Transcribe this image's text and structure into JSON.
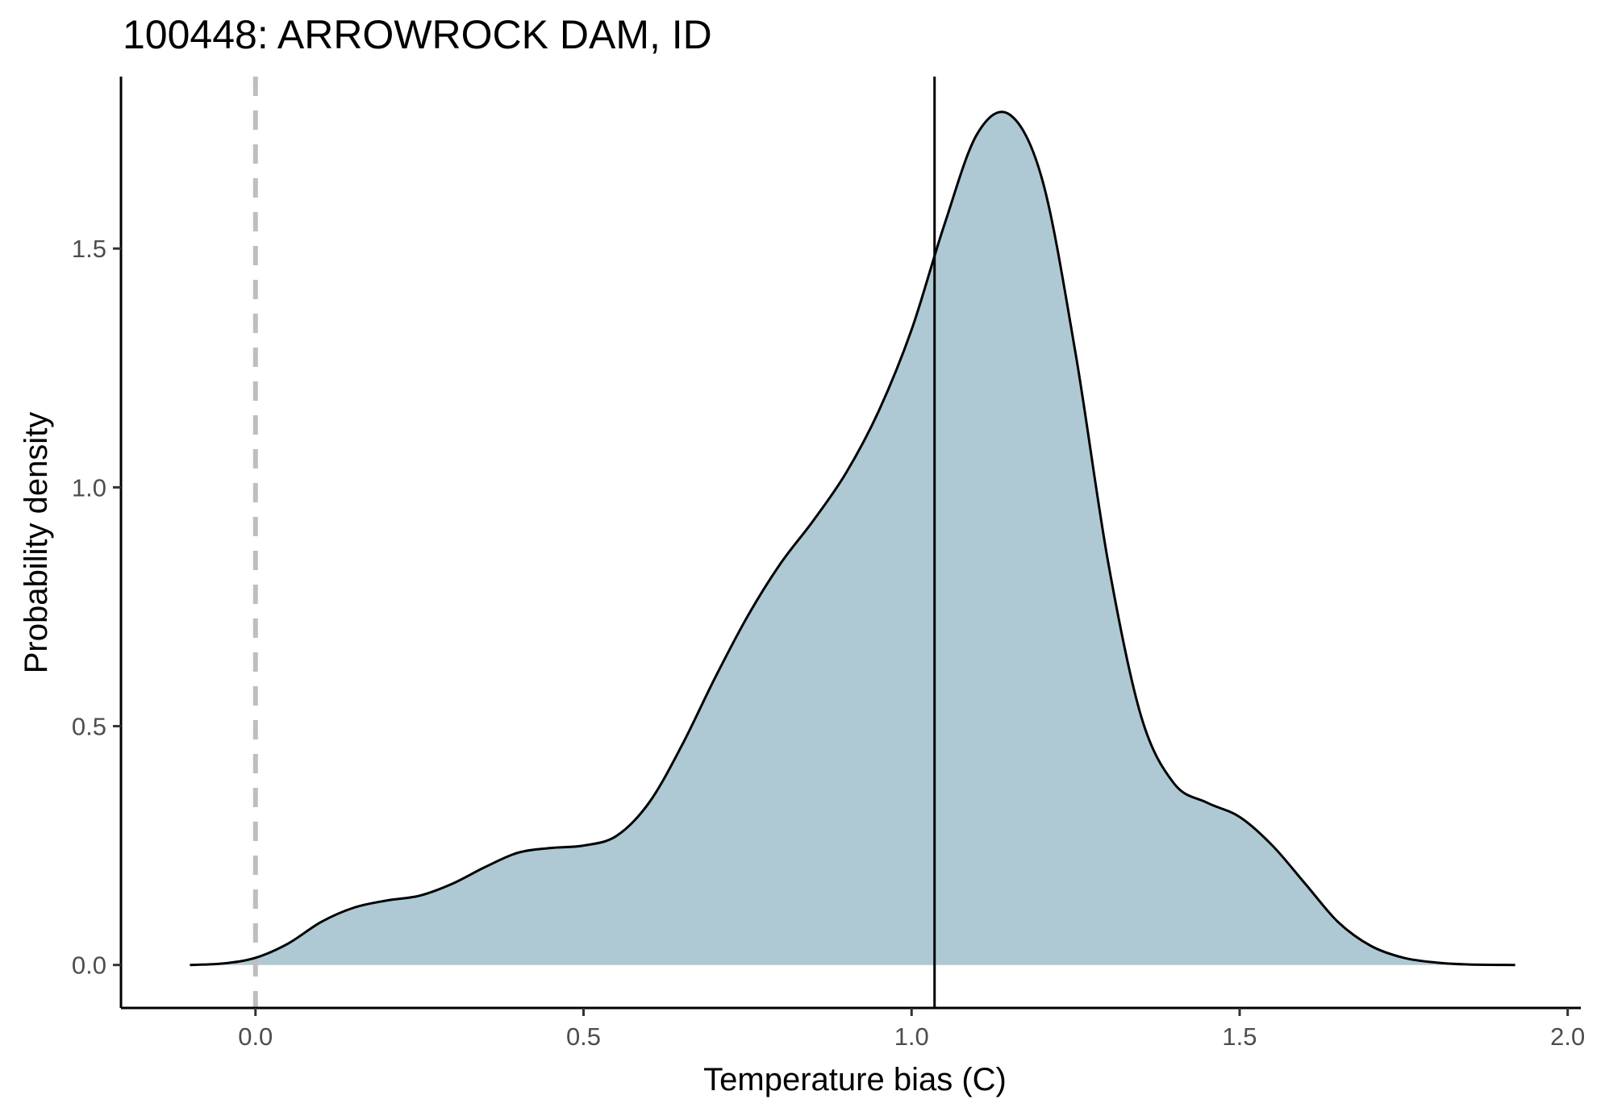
{
  "chart_data": {
    "type": "area",
    "title": "100448: ARROWROCK DAM, ID",
    "xlabel": "Temperature bias (C)",
    "ylabel": "Probability density",
    "xlim": [
      -0.205,
      2.02
    ],
    "ylim": [
      -0.09,
      1.86
    ],
    "x_ticks": [
      0.0,
      0.5,
      1.0,
      1.5,
      2.0
    ],
    "x_tick_labels": [
      "0.0",
      "0.5",
      "1.0",
      "1.5",
      "2.0"
    ],
    "y_ticks": [
      0.0,
      0.5,
      1.0,
      1.5
    ],
    "y_tick_labels": [
      "0.0",
      "0.5",
      "1.0",
      "1.5"
    ],
    "grid": false,
    "legend": "none",
    "colors": {
      "fill": "#aec9d3",
      "line": "#000000",
      "zero_line": "#bebebe",
      "axis": "#000000"
    },
    "reference_lines": [
      {
        "x": 0.0,
        "style": "dashed",
        "color": "#bebebe"
      },
      {
        "x": 1.035,
        "style": "solid",
        "color": "#000000"
      }
    ],
    "series": [
      {
        "x": [
          -0.1,
          -0.05,
          0.0,
          0.05,
          0.1,
          0.15,
          0.2,
          0.25,
          0.3,
          0.35,
          0.4,
          0.45,
          0.5,
          0.55,
          0.6,
          0.65,
          0.7,
          0.75,
          0.8,
          0.85,
          0.9,
          0.95,
          1.0,
          1.05,
          1.1,
          1.15,
          1.2,
          1.25,
          1.3,
          1.35,
          1.4,
          1.45,
          1.5,
          1.55,
          1.6,
          1.65,
          1.7,
          1.75,
          1.8,
          1.85,
          1.92
        ],
        "values": [
          0.0,
          0.003,
          0.015,
          0.045,
          0.09,
          0.12,
          0.135,
          0.145,
          0.17,
          0.205,
          0.235,
          0.245,
          0.25,
          0.27,
          0.34,
          0.46,
          0.6,
          0.73,
          0.84,
          0.93,
          1.03,
          1.16,
          1.33,
          1.55,
          1.74,
          1.78,
          1.64,
          1.28,
          0.84,
          0.52,
          0.38,
          0.34,
          0.31,
          0.25,
          0.17,
          0.09,
          0.04,
          0.015,
          0.005,
          0.001,
          0.0
        ]
      }
    ]
  }
}
